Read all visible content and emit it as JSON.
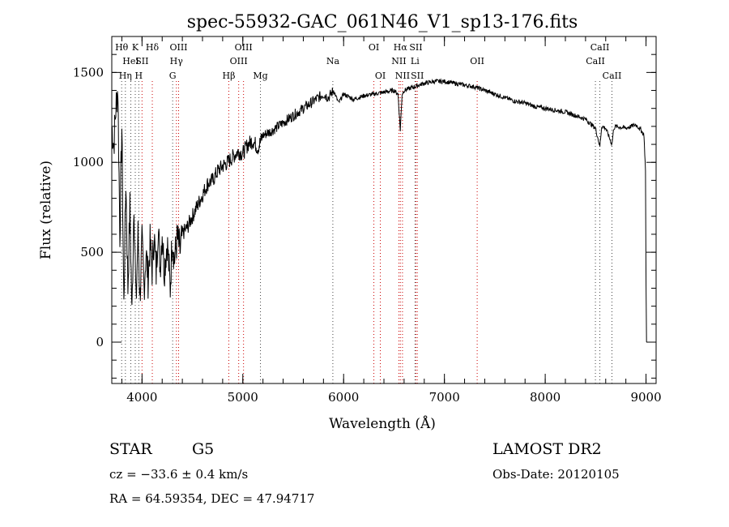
{
  "chart_data": {
    "type": "line",
    "title": "spec-55932-GAC_061N46_V1_sp13-176.fits",
    "xlabel": "Wavelength (Å)",
    "ylabel": "Flux (relative)",
    "xlim": [
      3700,
      9100
    ],
    "ylim": [
      -230,
      1700
    ],
    "x_ticks": [
      4000,
      5000,
      6000,
      7000,
      8000,
      9000
    ],
    "y_ticks": [
      0,
      500,
      1000,
      1500
    ],
    "grid": false,
    "series": [
      {
        "points": [
          [
            3700,
            1200
          ],
          [
            3720,
            1100
          ],
          [
            3740,
            1300
          ],
          [
            3760,
            1420
          ],
          [
            3780,
            600
          ],
          [
            3800,
            1200
          ],
          [
            3820,
            200
          ],
          [
            3840,
            900
          ],
          [
            3860,
            300
          ],
          [
            3880,
            750
          ],
          [
            3900,
            150
          ],
          [
            3920,
            800
          ],
          [
            3940,
            200
          ],
          [
            3960,
            600
          ],
          [
            3980,
            250
          ],
          [
            4000,
            550
          ],
          [
            4020,
            300
          ],
          [
            4040,
            500
          ],
          [
            4060,
            350
          ],
          [
            4080,
            550
          ],
          [
            4100,
            400
          ],
          [
            4120,
            600
          ],
          [
            4140,
            380
          ],
          [
            4160,
            650
          ],
          [
            4180,
            420
          ],
          [
            4200,
            620
          ],
          [
            4220,
            400
          ],
          [
            4250,
            560
          ],
          [
            4280,
            300
          ],
          [
            4300,
            600
          ],
          [
            4320,
            450
          ],
          [
            4350,
            580
          ],
          [
            4380,
            500
          ],
          [
            4400,
            600
          ],
          [
            4450,
            640
          ],
          [
            4500,
            700
          ],
          [
            4550,
            760
          ],
          [
            4600,
            820
          ],
          [
            4650,
            880
          ],
          [
            4700,
            900
          ],
          [
            4750,
            950
          ],
          [
            4800,
            980
          ],
          [
            4850,
            1000
          ],
          [
            4900,
            1030
          ],
          [
            4950,
            1060
          ],
          [
            5000,
            1050
          ],
          [
            5050,
            1100
          ],
          [
            5100,
            1120
          ],
          [
            5150,
            1080
          ],
          [
            5200,
            1150
          ],
          [
            5300,
            1180
          ],
          [
            5400,
            1220
          ],
          [
            5500,
            1260
          ],
          [
            5600,
            1300
          ],
          [
            5700,
            1340
          ],
          [
            5800,
            1380
          ],
          [
            5850,
            1360
          ],
          [
            5900,
            1400
          ],
          [
            5950,
            1330
          ],
          [
            6000,
            1380
          ],
          [
            6100,
            1350
          ],
          [
            6200,
            1370
          ],
          [
            6300,
            1380
          ],
          [
            6400,
            1390
          ],
          [
            6500,
            1400
          ],
          [
            6540,
            1380
          ],
          [
            6562,
            1180
          ],
          [
            6580,
            1380
          ],
          [
            6600,
            1400
          ],
          [
            6700,
            1420
          ],
          [
            6800,
            1440
          ],
          [
            6900,
            1450
          ],
          [
            7000,
            1450
          ],
          [
            7100,
            1440
          ],
          [
            7200,
            1430
          ],
          [
            7300,
            1420
          ],
          [
            7400,
            1400
          ],
          [
            7500,
            1380
          ],
          [
            7600,
            1360
          ],
          [
            7700,
            1340
          ],
          [
            7800,
            1330
          ],
          [
            7900,
            1310
          ],
          [
            8000,
            1300
          ],
          [
            8100,
            1290
          ],
          [
            8200,
            1280
          ],
          [
            8300,
            1260
          ],
          [
            8400,
            1240
          ],
          [
            8498,
            1190
          ],
          [
            8542,
            1090
          ],
          [
            8560,
            1200
          ],
          [
            8600,
            1190
          ],
          [
            8662,
            1100
          ],
          [
            8680,
            1190
          ],
          [
            8700,
            1200
          ],
          [
            8800,
            1190
          ],
          [
            8900,
            1210
          ],
          [
            8950,
            1180
          ],
          [
            8980,
            1150
          ],
          [
            8995,
            950
          ],
          [
            9000,
            300
          ],
          [
            9005,
            0
          ]
        ]
      }
    ],
    "lines": [
      {
        "wavelength": 3798,
        "label": "Hθ",
        "row": 1
      },
      {
        "wavelength": 3889,
        "label": "HeI",
        "row": 2
      },
      {
        "wavelength": 3835,
        "label": "Hη",
        "row": 3
      },
      {
        "wavelength": 3933,
        "label": "K",
        "row": 1
      },
      {
        "wavelength": 3968,
        "label": "H",
        "row": 3
      },
      {
        "wavelength": 4000,
        "label": "SII",
        "row": 2
      },
      {
        "wavelength": 4102,
        "label": "Hδ",
        "row": 1
      },
      {
        "wavelength": 4341,
        "label": "Hγ",
        "row": 2
      },
      {
        "wavelength": 4304,
        "label": "G",
        "row": 3
      },
      {
        "wavelength": 4363,
        "label": "OIII",
        "row": 1
      },
      {
        "wavelength": 4861,
        "label": "Hβ",
        "row": 3
      },
      {
        "wavelength": 4959,
        "label": "OIII",
        "row": 2
      },
      {
        "wavelength": 5007,
        "label": "OIII",
        "row": 1
      },
      {
        "wavelength": 5175,
        "label": "Mg",
        "row": 3
      },
      {
        "wavelength": 5893,
        "label": "Na",
        "row": 2
      },
      {
        "wavelength": 6300,
        "label": "OI",
        "row": 1
      },
      {
        "wavelength": 6364,
        "label": "OI",
        "row": 3
      },
      {
        "wavelength": 6548,
        "label": "NII",
        "row": 2
      },
      {
        "wavelength": 6563,
        "label": "Hα",
        "row": 1
      },
      {
        "wavelength": 6584,
        "label": "NII",
        "row": 3
      },
      {
        "wavelength": 6708,
        "label": "Li",
        "row": 2
      },
      {
        "wavelength": 6717,
        "label": "SII",
        "row": 1
      },
      {
        "wavelength": 6731,
        "label": "SII",
        "row": 3
      },
      {
        "wavelength": 7325,
        "label": "OII",
        "row": 2
      },
      {
        "wavelength": 8498,
        "label": "CaII",
        "row": 2
      },
      {
        "wavelength": 8542,
        "label": "CaII",
        "row": 1
      },
      {
        "wavelength": 8662,
        "label": "CaII",
        "row": 3
      }
    ]
  },
  "info": {
    "object_type": "STAR",
    "subclass": "G5",
    "survey": "LAMOST DR2",
    "redshift": "cz = −33.6 ± 0.4 km/s",
    "obs_date": "Obs-Date: 20120105",
    "coords": "RA =  64.59354, DEC =  47.94717"
  }
}
